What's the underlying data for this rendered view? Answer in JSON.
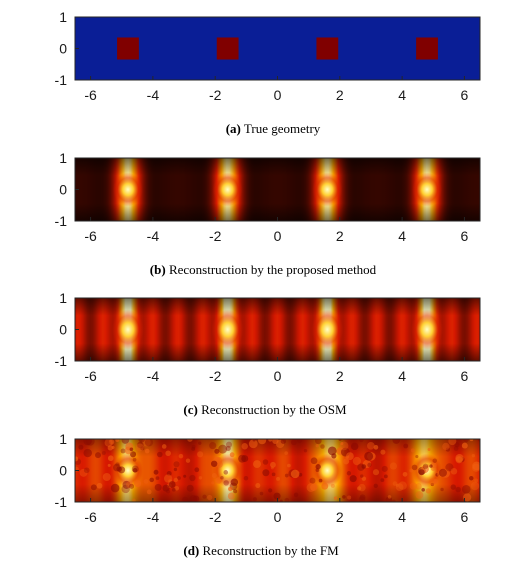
{
  "colors": {
    "background_true": "#0a1e96",
    "scatterer_true": "#800000",
    "hot_low": "#000000",
    "hot_mid": "#d82000",
    "hot_high": "#ffffc8"
  },
  "figure": {
    "panels": [
      {
        "id": "a",
        "tag": "(a)",
        "caption": "True geometry",
        "kind": "true-geometry"
      },
      {
        "id": "b",
        "tag": "(b)",
        "caption": "Reconstruction by the proposed method",
        "kind": "proposed"
      },
      {
        "id": "c",
        "tag": "(c)",
        "caption": "Reconstruction by the OSM",
        "kind": "osm"
      },
      {
        "id": "d",
        "tag": "(d)",
        "caption": "Reconstruction by the FM",
        "kind": "fm"
      }
    ]
  },
  "chart_data": [
    {
      "type": "heatmap",
      "title": "",
      "xlabel": "",
      "ylabel": "",
      "xlim": [
        -6.5,
        6.5
      ],
      "ylim": [
        -1,
        1
      ],
      "xticks": [
        -6,
        -4,
        -2,
        0,
        2,
        4,
        6
      ],
      "yticks": [
        1,
        0,
        -1
      ],
      "scatterers": [
        {
          "x": -4.8,
          "y": 0,
          "width": 0.7,
          "height": 0.7
        },
        {
          "x": -1.6,
          "y": 0,
          "width": 0.7,
          "height": 0.7
        },
        {
          "x": 1.6,
          "y": 0,
          "width": 0.7,
          "height": 0.7
        },
        {
          "x": 4.8,
          "y": 0,
          "width": 0.7,
          "height": 0.7
        }
      ]
    },
    {
      "type": "heatmap",
      "title": "",
      "xlabel": "",
      "ylabel": "",
      "xlim": [
        -6.5,
        6.5
      ],
      "ylim": [
        -1,
        1
      ],
      "xticks": [
        -6,
        -4,
        -2,
        0,
        2,
        4,
        6
      ],
      "yticks": [
        1,
        0,
        -1
      ],
      "colormap": "hot",
      "peaks": [
        -4.8,
        -1.6,
        1.6,
        4.8
      ]
    },
    {
      "type": "heatmap",
      "title": "",
      "xlabel": "",
      "ylabel": "",
      "xlim": [
        -6.5,
        6.5
      ],
      "ylim": [
        -1,
        1
      ],
      "xticks": [
        -6,
        -4,
        -2,
        0,
        2,
        4,
        6
      ],
      "yticks": [
        1,
        0,
        -1
      ],
      "colormap": "hot",
      "peaks": [
        -4.8,
        -1.6,
        1.6,
        4.8
      ]
    },
    {
      "type": "heatmap",
      "title": "",
      "xlabel": "",
      "ylabel": "",
      "xlim": [
        -6.5,
        6.5
      ],
      "ylim": [
        -1,
        1
      ],
      "xticks": [
        -6,
        -4,
        -2,
        0,
        2,
        4,
        6
      ],
      "yticks": [
        1,
        0,
        -1
      ],
      "colormap": "hot",
      "peaks": [
        -4.8,
        -1.6,
        1.6,
        4.8
      ]
    }
  ]
}
